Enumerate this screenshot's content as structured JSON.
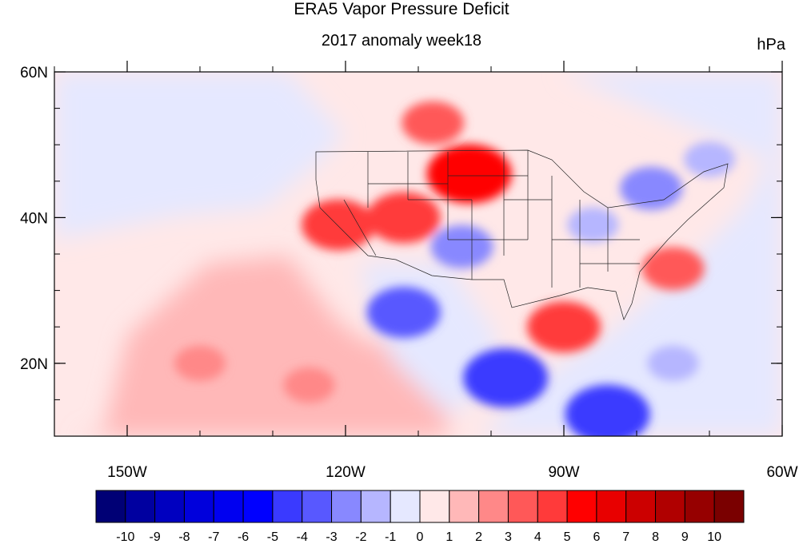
{
  "title": "ERA5 Vapor Pressure Deficit",
  "subtitle": "2017 anomaly week18",
  "units": "hPa",
  "map": {
    "lon_range": [
      -160,
      -60
    ],
    "lat_range": [
      10,
      60
    ],
    "lat_labels": [
      {
        "value": 60,
        "label": "60N"
      },
      {
        "value": 40,
        "label": "40N"
      },
      {
        "value": 20,
        "label": "20N"
      }
    ],
    "lon_labels": [
      {
        "value": -150,
        "label": "150W"
      },
      {
        "value": -120,
        "label": "120W"
      },
      {
        "value": -90,
        "label": "90W"
      },
      {
        "value": -60,
        "label": "60W"
      }
    ],
    "features": [
      {
        "name": "pacific-positive-anomaly",
        "lon": -140,
        "lat": 20,
        "value": 2
      },
      {
        "name": "central-pacific-positive-anomaly",
        "lon": -125,
        "lat": 17,
        "value": 2
      },
      {
        "name": "canada-prairies-positive-anomaly",
        "lon": -108,
        "lat": 53,
        "value": 3
      },
      {
        "name": "northern-plains-positive-anomaly",
        "lon": -103,
        "lat": 46,
        "value": 5
      },
      {
        "name": "great-basin-positive-anomaly",
        "lon": -112,
        "lat": 40,
        "value": 4
      },
      {
        "name": "california-positive-anomaly",
        "lon": -121,
        "lat": 39,
        "value": 4
      },
      {
        "name": "gulf-of-mexico-positive-anomaly",
        "lon": -90,
        "lat": 25,
        "value": 4
      },
      {
        "name": "southeast-coast-positive-anomaly",
        "lon": -75,
        "lat": 33,
        "value": 3
      },
      {
        "name": "northeast-negative-anomaly",
        "lon": -78,
        "lat": 44,
        "value": -3
      },
      {
        "name": "ohio-valley-negative-anomaly",
        "lon": -86,
        "lat": 39,
        "value": -2
      },
      {
        "name": "gulf-of-california-negative-anomaly",
        "lon": -112,
        "lat": 27,
        "value": -4
      },
      {
        "name": "southern-mexico-negative-anomaly",
        "lon": -98,
        "lat": 18,
        "value": -5
      },
      {
        "name": "central-america-negative-anomaly",
        "lon": -84,
        "lat": 13,
        "value": -5
      },
      {
        "name": "caribbean-negative-anomaly",
        "lon": -75,
        "lat": 20,
        "value": -2
      },
      {
        "name": "texas-negative-anomaly",
        "lon": -104,
        "lat": 36,
        "value": -3
      },
      {
        "name": "northwest-atlantic-negative-anomaly",
        "lon": -70,
        "lat": 48,
        "value": -2
      }
    ]
  },
  "colorbar": {
    "labels": [
      "-10",
      "-9",
      "-8",
      "-7",
      "-6",
      "-5",
      "-4",
      "-3",
      "-2",
      "-1",
      "0",
      "1",
      "2",
      "3",
      "4",
      "5",
      "6",
      "7",
      "8",
      "9",
      "10"
    ],
    "colors": [
      "#000075",
      "#0000a0",
      "#0000c0",
      "#0000dc",
      "#0000f0",
      "#0000ff",
      "#3a3aff",
      "#5858ff",
      "#8888ff",
      "#b6b6ff",
      "#e5e8ff",
      "#ffe8e8",
      "#ffb8b8",
      "#ff8888",
      "#ff5858",
      "#ff3a3a",
      "#ff0000",
      "#e80000",
      "#cc0000",
      "#b00000",
      "#960000",
      "#7a0000"
    ]
  }
}
